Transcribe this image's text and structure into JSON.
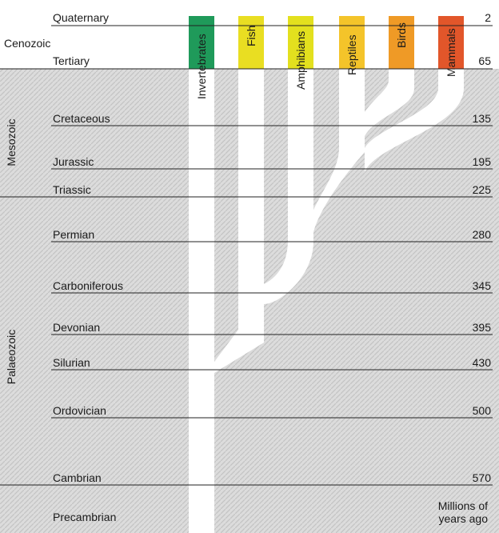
{
  "eras": {
    "cenozoic": "Cenozoic",
    "mesozoic": "Mesozoic",
    "palaeozoic": "Palaeozoic"
  },
  "periods": [
    {
      "name": "Quaternary",
      "mya": "2"
    },
    {
      "name": "Tertiary",
      "mya": "65"
    },
    {
      "name": "Cretaceous",
      "mya": "135"
    },
    {
      "name": "Jurassic",
      "mya": "195"
    },
    {
      "name": "Triassic",
      "mya": "225"
    },
    {
      "name": "Permian",
      "mya": "280"
    },
    {
      "name": "Carboniferous",
      "mya": "345"
    },
    {
      "name": "Devonian",
      "mya": "395"
    },
    {
      "name": "Silurian",
      "mya": "430"
    },
    {
      "name": "Ordovician",
      "mya": "500"
    },
    {
      "name": "Cambrian",
      "mya": "570"
    },
    {
      "name": "Precambrian",
      "mya": ""
    }
  ],
  "groups": [
    {
      "name": "Invertebrates",
      "color": "#1f9a5a"
    },
    {
      "name": "Fish",
      "color": "#e9de22"
    },
    {
      "name": "Amphibians",
      "color": "#e3e01e"
    },
    {
      "name": "Reptiles",
      "color": "#f4c42a"
    },
    {
      "name": "Birds",
      "color": "#ef9a26"
    },
    {
      "name": "Mammals",
      "color": "#e2562a"
    }
  ],
  "units_label": "Millions of years ago"
}
